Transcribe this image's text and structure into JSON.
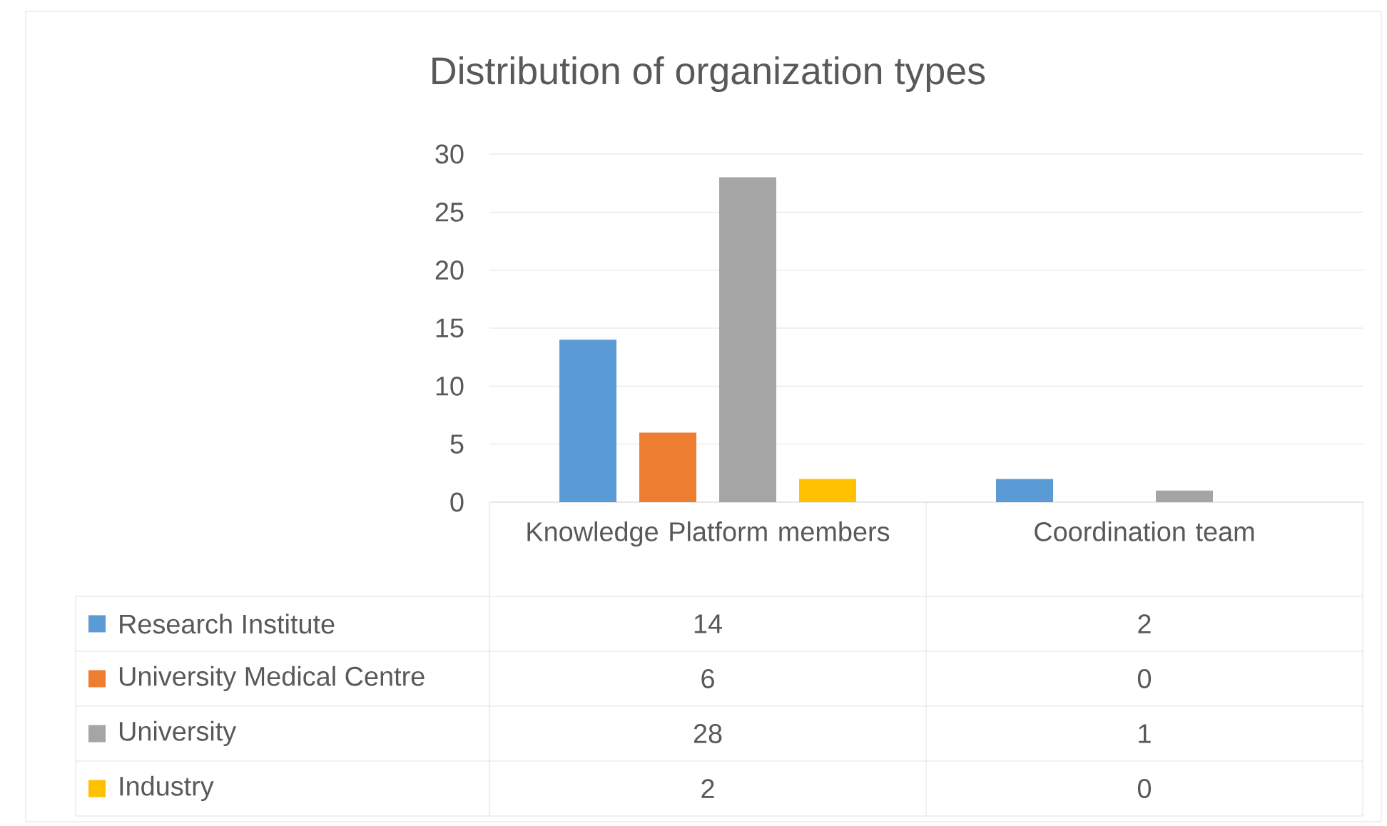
{
  "chart_data": {
    "type": "bar",
    "title": "Distribution of organization types",
    "categories": [
      "Knowledge Platform members",
      "Coordination team"
    ],
    "series": [
      {
        "name": "Research Institute",
        "color": "#5b9bd5",
        "values": [
          14,
          2
        ]
      },
      {
        "name": "University Medical Centre",
        "color": "#ed7d31",
        "values": [
          6,
          0
        ]
      },
      {
        "name": "University",
        "color": "#a5a5a5",
        "values": [
          28,
          1
        ]
      },
      {
        "name": "Industry",
        "color": "#ffc000",
        "values": [
          2,
          0
        ]
      }
    ],
    "ylim": [
      0,
      30
    ],
    "yticks": [
      0,
      5,
      10,
      15,
      20,
      25,
      30
    ],
    "grid": "y",
    "legend": "bottom",
    "data_labels": true
  }
}
